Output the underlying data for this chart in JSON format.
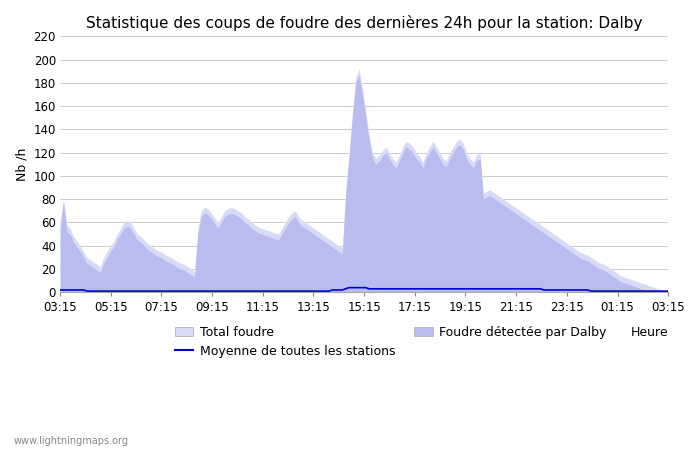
{
  "title": "Statistique des coups de foudre des dernières 24h pour la station: Dalby",
  "ylabel": "Nb /h",
  "xlabel": "Heure",
  "watermark": "www.lightningmaps.org",
  "ylim": [
    0,
    220
  ],
  "yticks": [
    0,
    20,
    40,
    60,
    80,
    100,
    120,
    140,
    160,
    180,
    200,
    220
  ],
  "xtick_labels": [
    "03:15",
    "05:15",
    "07:15",
    "09:15",
    "11:15",
    "13:15",
    "15:15",
    "17:15",
    "19:15",
    "21:15",
    "23:15",
    "01:15",
    "03:15"
  ],
  "total_foudre_color": "#d8dbf5",
  "foudre_dalby_color": "#b8bcee",
  "moyenne_color": "#0000dd",
  "background_color": "#ffffff",
  "grid_color": "#cccccc",
  "title_fontsize": 11,
  "axis_fontsize": 9,
  "tick_fontsize": 8.5,
  "legend_fontsize": 9,
  "total_foudre": [
    60,
    80,
    58,
    55,
    48,
    44,
    40,
    35,
    30,
    28,
    26,
    24,
    22,
    30,
    35,
    40,
    44,
    50,
    55,
    60,
    62,
    60,
    55,
    50,
    48,
    45,
    42,
    40,
    38,
    36,
    35,
    33,
    31,
    30,
    28,
    26,
    25,
    24,
    22,
    20,
    18,
    55,
    70,
    73,
    72,
    68,
    64,
    60,
    65,
    70,
    72,
    73,
    72,
    70,
    68,
    65,
    63,
    60,
    58,
    56,
    55,
    54,
    53,
    52,
    51,
    50,
    55,
    60,
    65,
    68,
    70,
    65,
    62,
    60,
    58,
    56,
    54,
    52,
    50,
    48,
    46,
    44,
    42,
    40,
    38,
    88,
    120,
    155,
    185,
    192,
    175,
    155,
    135,
    120,
    115,
    118,
    122,
    125,
    120,
    115,
    112,
    118,
    125,
    130,
    128,
    125,
    120,
    117,
    112,
    120,
    125,
    130,
    125,
    120,
    115,
    113,
    120,
    125,
    130,
    132,
    128,
    120,
    115,
    112,
    118,
    120,
    85,
    87,
    88,
    86,
    84,
    82,
    80,
    78,
    76,
    74,
    72,
    70,
    68,
    66,
    64,
    62,
    60,
    58,
    56,
    54,
    52,
    50,
    48,
    46,
    44,
    42,
    40,
    38,
    36,
    34,
    33,
    32,
    30,
    28,
    26,
    25,
    24,
    22,
    20,
    18,
    16,
    14,
    13,
    12,
    11,
    10,
    9,
    8,
    7,
    6,
    5,
    4,
    3,
    2,
    1,
    0
  ],
  "foudre_dalby": [
    55,
    78,
    52,
    50,
    43,
    39,
    35,
    30,
    25,
    23,
    21,
    19,
    17,
    25,
    30,
    35,
    39,
    45,
    50,
    55,
    57,
    55,
    50,
    45,
    43,
    40,
    37,
    35,
    33,
    31,
    30,
    28,
    26,
    25,
    23,
    21,
    20,
    19,
    17,
    15,
    13,
    50,
    65,
    68,
    67,
    63,
    59,
    55,
    60,
    65,
    67,
    68,
    67,
    65,
    63,
    60,
    58,
    55,
    53,
    51,
    50,
    49,
    48,
    47,
    46,
    45,
    50,
    55,
    60,
    63,
    65,
    60,
    57,
    55,
    53,
    51,
    49,
    47,
    45,
    43,
    41,
    39,
    37,
    35,
    33,
    83,
    115,
    150,
    180,
    187,
    170,
    150,
    130,
    115,
    110,
    113,
    117,
    120,
    115,
    110,
    107,
    113,
    120,
    125,
    123,
    120,
    115,
    112,
    107,
    115,
    120,
    125,
    120,
    115,
    110,
    108,
    115,
    120,
    125,
    127,
    123,
    115,
    110,
    107,
    113,
    115,
    80,
    82,
    83,
    81,
    79,
    77,
    75,
    73,
    71,
    69,
    67,
    65,
    63,
    61,
    59,
    57,
    55,
    53,
    51,
    49,
    47,
    45,
    43,
    41,
    39,
    37,
    35,
    33,
    31,
    29,
    28,
    27,
    25,
    23,
    21,
    20,
    19,
    17,
    15,
    13,
    11,
    9,
    8,
    7,
    6,
    5,
    4,
    3,
    2,
    1,
    0,
    0,
    0,
    0,
    0,
    0
  ],
  "moyenne": [
    2,
    2,
    2,
    2,
    2,
    2,
    2,
    2,
    1,
    1,
    1,
    1,
    1,
    1,
    1,
    1,
    1,
    1,
    1,
    1,
    1,
    1,
    1,
    1,
    1,
    1,
    1,
    1,
    1,
    1,
    1,
    1,
    1,
    1,
    1,
    1,
    1,
    1,
    1,
    1,
    1,
    1,
    1,
    1,
    1,
    1,
    1,
    1,
    1,
    1,
    1,
    1,
    1,
    1,
    1,
    1,
    1,
    1,
    1,
    1,
    1,
    1,
    1,
    1,
    1,
    1,
    1,
    1,
    1,
    1,
    1,
    1,
    1,
    1,
    1,
    1,
    1,
    1,
    1,
    1,
    1,
    2,
    2,
    2,
    2,
    3,
    4,
    4,
    4,
    4,
    4,
    4,
    3,
    3,
    3,
    3,
    3,
    3,
    3,
    3,
    3,
    3,
    3,
    3,
    3,
    3,
    3,
    3,
    3,
    3,
    3,
    3,
    3,
    3,
    3,
    3,
    3,
    3,
    3,
    3,
    3,
    3,
    3,
    3,
    3,
    3,
    3,
    3,
    3,
    3,
    3,
    3,
    3,
    3,
    3,
    3,
    3,
    3,
    3,
    3,
    3,
    3,
    3,
    3,
    2,
    2,
    2,
    2,
    2,
    2,
    2,
    2,
    2,
    2,
    2,
    2,
    2,
    2,
    1,
    1,
    1,
    1,
    1,
    1,
    1,
    1,
    1,
    1,
    1,
    1,
    1,
    1,
    1,
    1,
    1,
    1,
    1,
    1,
    1,
    1,
    1,
    1
  ]
}
